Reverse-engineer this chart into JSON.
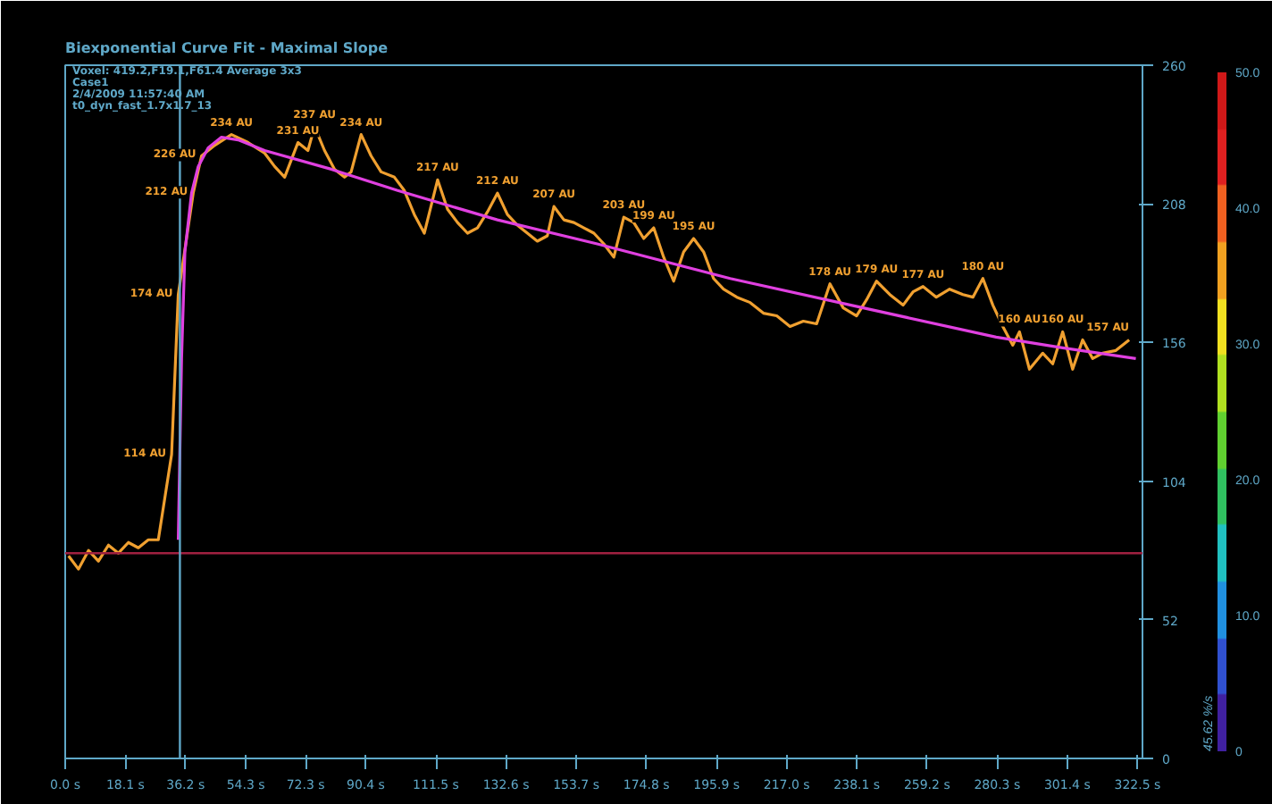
{
  "chart_data": {
    "type": "line",
    "title": "Biexponential Curve Fit - Maximal Slope",
    "annotations": [
      "Voxel: 419.2,F19.1,F61.4 Average 3x3",
      "Case1",
      "2/4/2009 11:57:40 AM",
      "t0_dyn_fast_1.7x1.7_13"
    ],
    "xlim": [
      0,
      324
    ],
    "ylim": [
      0,
      260
    ],
    "xticks": [
      {
        "value": 0,
        "label": "0.0 s"
      },
      {
        "value": 18.1,
        "label": "18.1 s"
      },
      {
        "value": 36.2,
        "label": "36.2 s"
      },
      {
        "value": 54.3,
        "label": "54.3 s"
      },
      {
        "value": 72.3,
        "label": "72.3 s"
      },
      {
        "value": 90.4,
        "label": "90.4 s"
      },
      {
        "value": 111.5,
        "label": "111.5 s"
      },
      {
        "value": 132.6,
        "label": "132.6 s"
      },
      {
        "value": 153.7,
        "label": "153.7 s"
      },
      {
        "value": 174.8,
        "label": "174.8 s"
      },
      {
        "value": 195.9,
        "label": "195.9 s"
      },
      {
        "value": 217.0,
        "label": "217.0 s"
      },
      {
        "value": 238.1,
        "label": "238.1 s"
      },
      {
        "value": 259.2,
        "label": "259.2 s"
      },
      {
        "value": 280.3,
        "label": "280.3 s"
      },
      {
        "value": 301.4,
        "label": "301.4 s"
      },
      {
        "value": 322.5,
        "label": "322.5 s"
      }
    ],
    "yticks": [
      0,
      52,
      104,
      156,
      208,
      260
    ],
    "clabel": "45.62 %/s",
    "clim": [
      0,
      50
    ],
    "cticks": [
      {
        "value": 0,
        "label": "0"
      },
      {
        "value": 10,
        "label": "10.0"
      },
      {
        "value": 20,
        "label": "20.0"
      },
      {
        "value": 30,
        "label": "30.0"
      },
      {
        "value": 40,
        "label": "40.0"
      },
      {
        "value": 50,
        "label": "50.0"
      }
    ],
    "grid": false,
    "marker": "none",
    "line_style": "solid",
    "ref_lines": [
      {
        "axis": "y",
        "value": 77,
        "label": null,
        "color": "#a02040"
      },
      {
        "axis": "x",
        "value": 34.5,
        "label": null,
        "color": "#5fa8c8"
      }
    ],
    "series": [
      {
        "color": "#f0a030",
        "x": [
          1,
          4,
          7,
          10,
          13,
          16,
          19,
          22,
          25,
          28,
          32,
          34,
          38.5,
          41,
          45,
          50,
          55,
          60,
          63,
          66,
          70,
          73,
          75,
          78,
          81,
          84,
          86,
          89,
          92,
          95,
          99,
          102,
          105,
          108,
          110,
          112,
          115,
          118,
          121,
          124,
          127,
          130,
          133,
          136,
          139,
          142,
          145,
          147,
          150,
          153,
          156,
          159,
          162,
          165,
          168,
          171,
          174,
          177,
          180,
          183,
          186,
          189,
          192,
          195,
          198,
          202,
          206,
          210,
          214,
          218,
          222,
          226,
          230,
          234,
          238,
          241,
          244,
          248,
          252,
          255,
          258,
          262,
          266,
          270,
          273,
          276,
          279,
          282,
          285,
          287,
          290,
          294,
          297,
          300,
          303,
          306,
          309,
          312,
          316,
          320
        ],
        "values": [
          76,
          71,
          78,
          74,
          80,
          77,
          81,
          79,
          82,
          82,
          114,
          174,
          212,
          226,
          230,
          234,
          231,
          227,
          222,
          218,
          231,
          228,
          237,
          228,
          221,
          218,
          220,
          234,
          226,
          220,
          218,
          213,
          204,
          197,
          207,
          217,
          206,
          201,
          197,
          199,
          205,
          212,
          204,
          200,
          197,
          194,
          196,
          207,
          202,
          201,
          199,
          197,
          193,
          188,
          203,
          201,
          195,
          199,
          188,
          179,
          190,
          195,
          190,
          180,
          176,
          173,
          171,
          167,
          166,
          162,
          164,
          163,
          178,
          169,
          166,
          172,
          179,
          174,
          170,
          175,
          177,
          173,
          176,
          174,
          173,
          180,
          170,
          162,
          155,
          160,
          146,
          152,
          148,
          160,
          146,
          157,
          150,
          152,
          153,
          157
        ],
        "value_labels": [
          null,
          null,
          null,
          null,
          null,
          null,
          null,
          null,
          null,
          null,
          "114 AU",
          "174 AU",
          "212 AU",
          "226 AU",
          null,
          "234 AU",
          null,
          null,
          null,
          null,
          "231 AU",
          null,
          "237 AU",
          null,
          null,
          null,
          null,
          "234 AU",
          null,
          null,
          null,
          null,
          null,
          null,
          null,
          "217 AU",
          null,
          null,
          null,
          null,
          null,
          "212 AU",
          null,
          null,
          null,
          null,
          null,
          "207 AU",
          null,
          null,
          null,
          null,
          null,
          null,
          "203 AU",
          null,
          null,
          "199 AU",
          null,
          null,
          null,
          "195 AU",
          null,
          null,
          null,
          null,
          null,
          null,
          null,
          null,
          null,
          null,
          "178 AU",
          null,
          null,
          null,
          "179 AU",
          null,
          null,
          null,
          "177 AU",
          null,
          null,
          null,
          null,
          "180 AU",
          null,
          null,
          null,
          "160 AU",
          null,
          null,
          null,
          "160 AU",
          null,
          null,
          null,
          null,
          null,
          "157 AU"
        ]
      },
      {
        "color": "#e040e0",
        "x": [
          34,
          35,
          36,
          38,
          40,
          43,
          47,
          52,
          60,
          80,
          100,
          130,
          160,
          200,
          240,
          280,
          300,
          322
        ],
        "values": [
          82,
          150,
          190,
          212,
          222,
          229,
          233,
          232,
          228,
          221,
          213,
          202,
          193,
          180,
          169,
          158,
          154,
          150
        ]
      }
    ]
  }
}
